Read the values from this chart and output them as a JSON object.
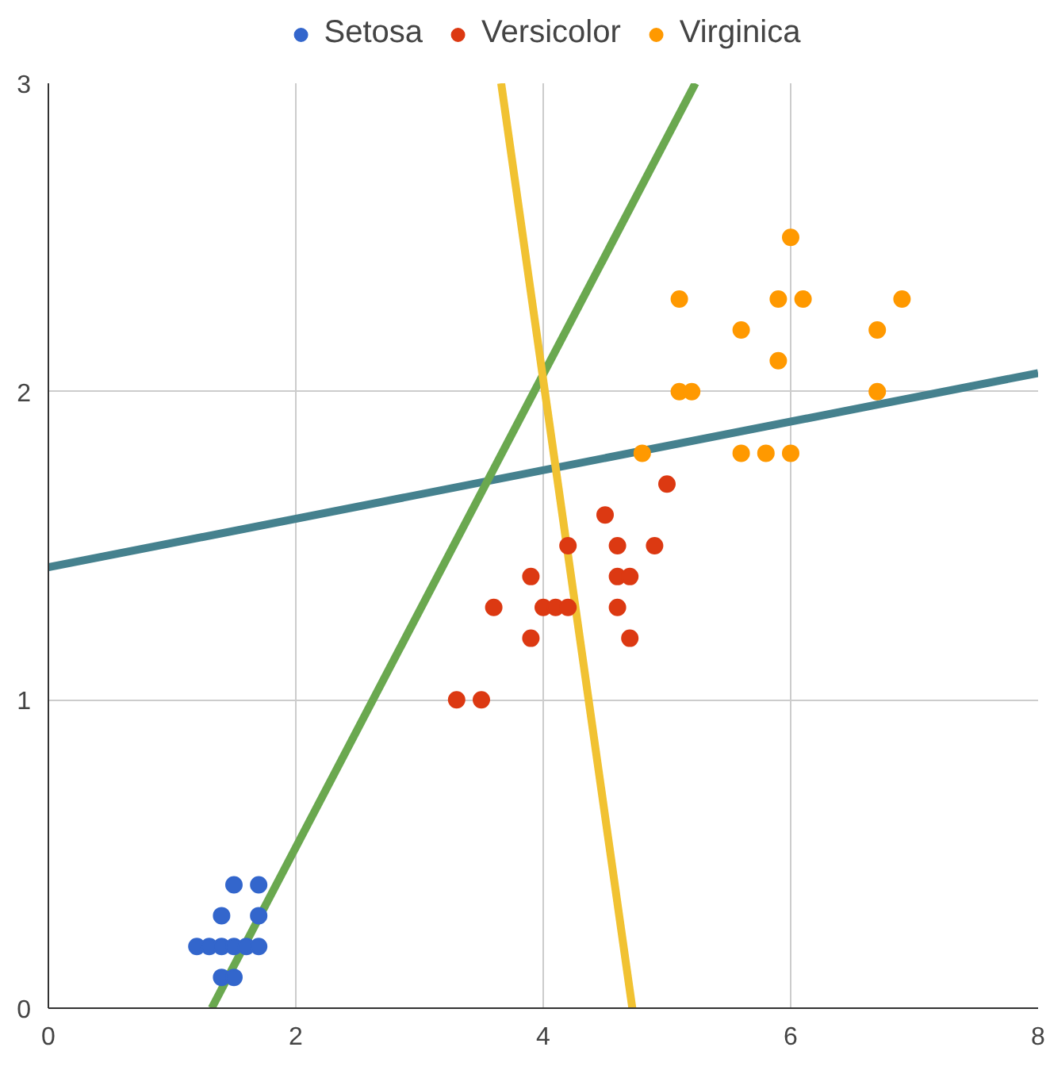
{
  "chart_data": {
    "type": "scatter",
    "xlim": [
      0,
      8
    ],
    "ylim": [
      0,
      3
    ],
    "xticks": [
      0,
      2,
      4,
      6,
      8
    ],
    "yticks": [
      0,
      1,
      2,
      3
    ],
    "grid": true,
    "legend": "top",
    "series": [
      {
        "name": "Setosa",
        "color": "#3366cc",
        "marker": "circle",
        "x": [
          1.2,
          1.3,
          1.4,
          1.5,
          1.6,
          1.7,
          1.4,
          1.7,
          1.5,
          1.7,
          1.4,
          1.5
        ],
        "values": [
          0.2,
          0.2,
          0.2,
          0.2,
          0.2,
          0.2,
          0.3,
          0.3,
          0.4,
          0.4,
          0.1,
          0.1
        ]
      },
      {
        "name": "Versicolor",
        "color": "#dc3912",
        "marker": "circle",
        "x": [
          3.3,
          3.5,
          3.6,
          3.9,
          4.0,
          4.1,
          4.2,
          4.2,
          3.9,
          4.5,
          4.6,
          4.9,
          4.6,
          4.7,
          4.6,
          4.7,
          5.0
        ],
        "values": [
          1.0,
          1.0,
          1.3,
          1.4,
          1.3,
          1.3,
          1.3,
          1.5,
          1.2,
          1.6,
          1.5,
          1.5,
          1.4,
          1.4,
          1.3,
          1.2,
          1.7
        ]
      },
      {
        "name": "Virginica",
        "color": "#ff9900",
        "marker": "circle",
        "x": [
          4.8,
          5.1,
          5.1,
          5.2,
          5.6,
          5.6,
          5.8,
          6.0,
          5.9,
          6.1,
          5.9,
          6.0,
          6.7,
          6.7,
          6.9
        ],
        "values": [
          1.8,
          2.3,
          2.0,
          2.0,
          2.2,
          1.8,
          1.8,
          2.5,
          2.3,
          2.3,
          2.1,
          1.8,
          2.2,
          2.0,
          2.3
        ]
      },
      {
        "type": "line",
        "color": "#45818e",
        "x": [
          0,
          8
        ],
        "values": [
          1.43,
          2.06
        ]
      },
      {
        "type": "line",
        "color": "#6aa84f",
        "x": [
          1.32,
          5.23
        ],
        "values": [
          0,
          3.0
        ]
      },
      {
        "type": "line",
        "color": "#f1c232",
        "x": [
          3.66,
          4.72
        ],
        "values": [
          3.0,
          0
        ]
      }
    ]
  }
}
